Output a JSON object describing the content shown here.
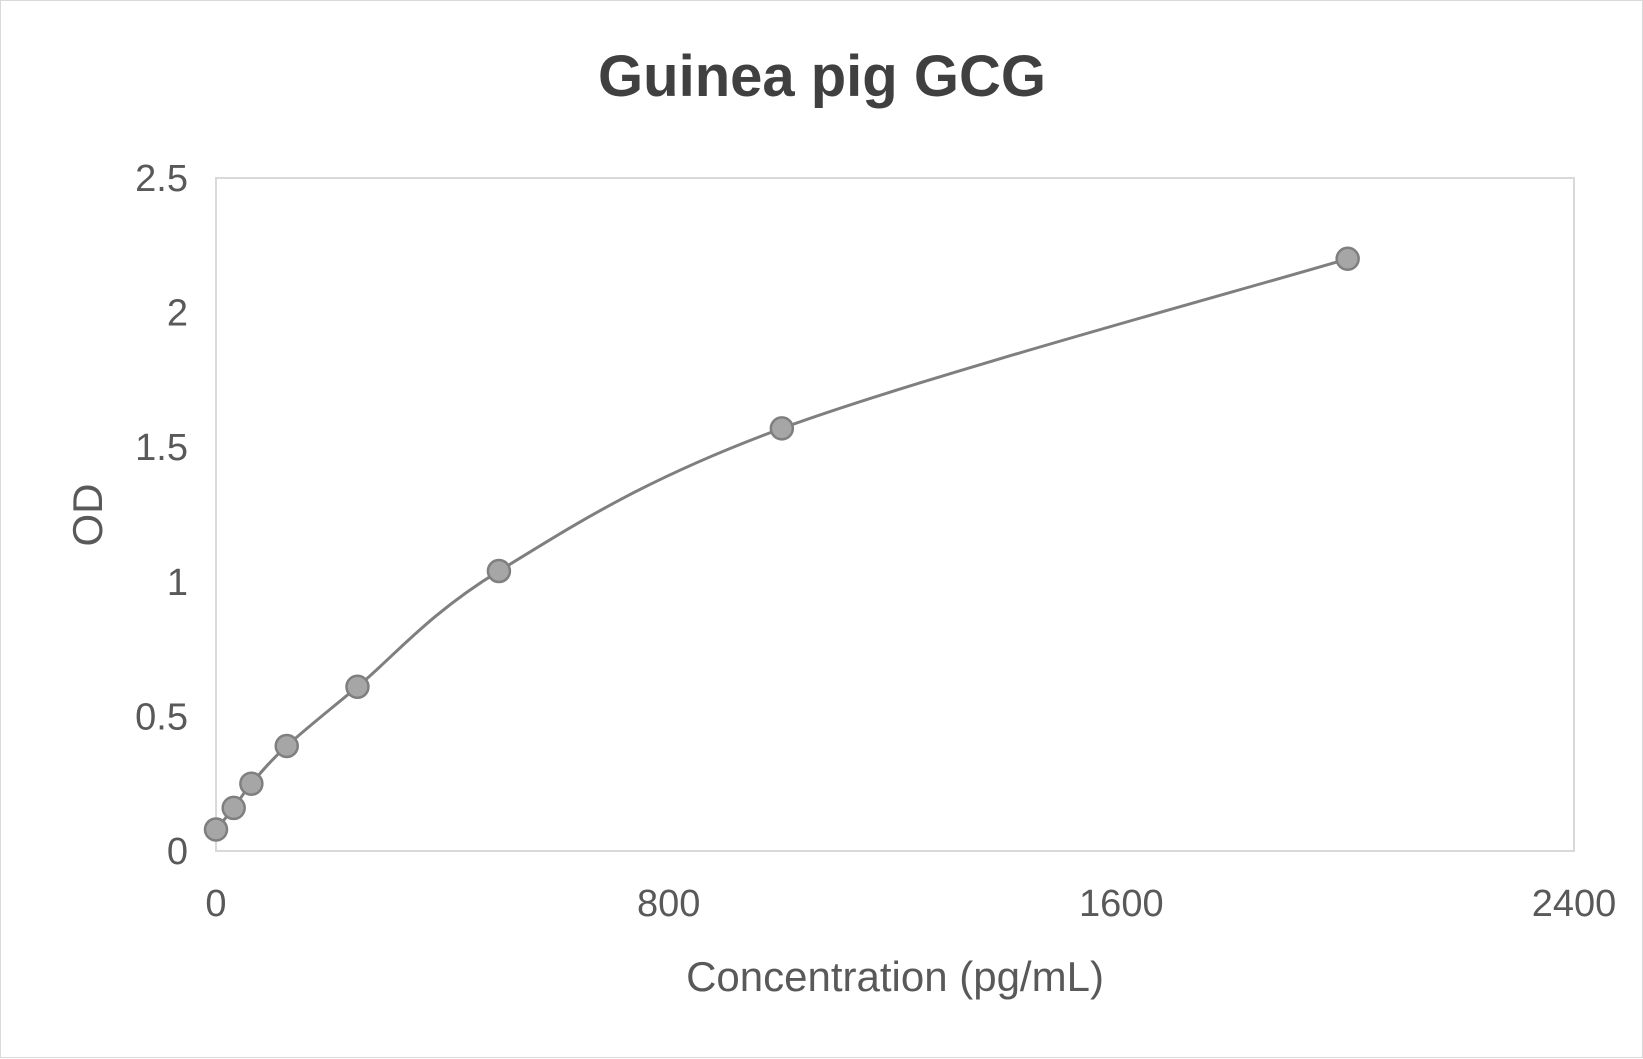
{
  "chart_data": {
    "type": "scatter",
    "title": "Guinea pig GCG",
    "xlabel": "Concentration (pg/mL)",
    "ylabel": "OD",
    "xlim": [
      0,
      2400
    ],
    "ylim": [
      0,
      2.5
    ],
    "x_ticks": [
      "0",
      "800",
      "1600",
      "2400"
    ],
    "y_ticks": [
      "0",
      "0.5",
      "1",
      "1.5",
      "2",
      "2.5"
    ],
    "smooth_line": true,
    "grid": false,
    "marker_color": "#a6a6a6",
    "marker_edge_color": "#7f7f7f",
    "line_color": "#7f7f7f",
    "series": [
      {
        "x": [
          0,
          31.25,
          62.5,
          125,
          250,
          500,
          1000,
          2000
        ],
        "y": [
          0.08,
          0.16,
          0.25,
          0.39,
          0.61,
          1.04,
          1.57,
          2.2
        ]
      }
    ]
  }
}
